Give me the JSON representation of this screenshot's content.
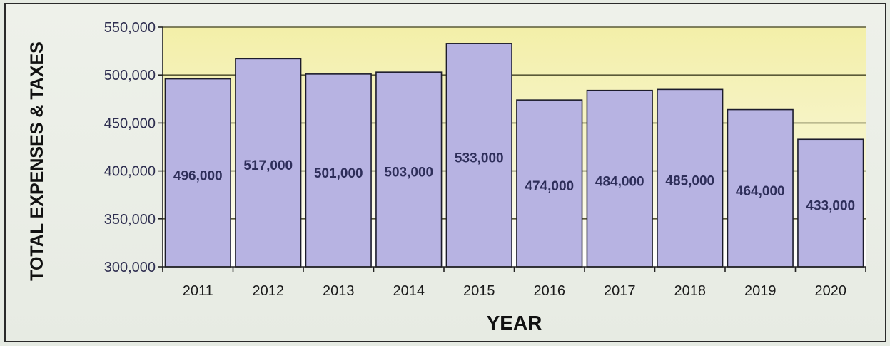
{
  "chart_data": {
    "type": "bar",
    "title": "",
    "xlabel": "YEAR",
    "ylabel": "TOTAL EXPENSES & TAXES",
    "categories": [
      "2011",
      "2012",
      "2013",
      "2014",
      "2015",
      "2016",
      "2017",
      "2018",
      "2019",
      "2020"
    ],
    "values": [
      496000,
      517000,
      501000,
      503000,
      533000,
      474000,
      484000,
      485000,
      464000,
      433000
    ],
    "data_labels": [
      "496,000",
      "517,000",
      "501,000",
      "503,000",
      "533,000",
      "474,000",
      "484,000",
      "485,000",
      "464,000",
      "433,000"
    ],
    "ylim": [
      300000,
      550000
    ],
    "y_ticks": [
      300000,
      350000,
      400000,
      450000,
      500000,
      550000
    ],
    "y_tick_labels": [
      "300,000",
      "350,000",
      "400,000",
      "450,000",
      "500,000",
      "550,000"
    ],
    "grid": true,
    "legend": "none",
    "colors": {
      "bar_fill": "#b7b3e2",
      "bar_stroke": "#1c1c2c",
      "plot_band_fill": "#f3efa8",
      "plot_base_fill": "#ffffff",
      "gridline": "#5a5a38"
    }
  }
}
